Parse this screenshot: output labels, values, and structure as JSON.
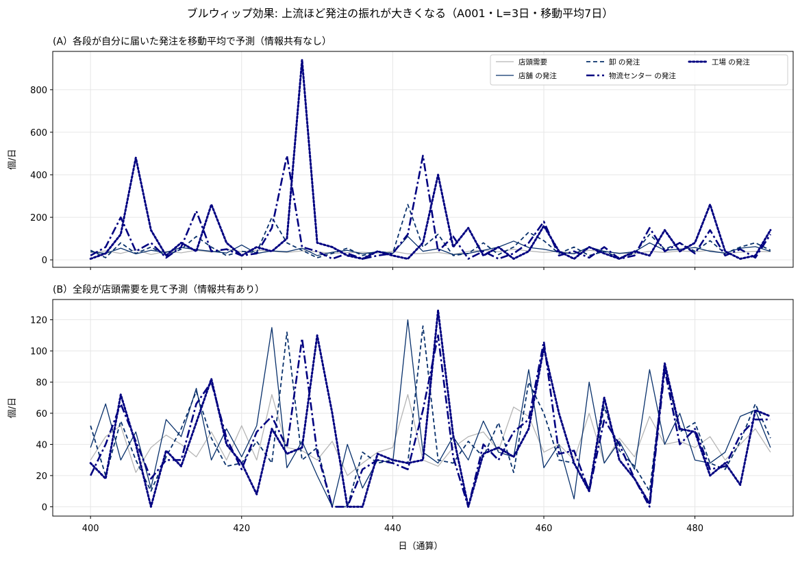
{
  "figure": {
    "suptitle": "ブルウィップ効果: 上流ほど発注の振れが大きくなる（A001・L=3日・移動平均7日）",
    "xlabel": "日（通算）"
  },
  "legend": {
    "placement": "upper-right",
    "entries": [
      {
        "label": "店頭需要",
        "color": "#b5b5b5",
        "style": "solid-thin"
      },
      {
        "label": "店舗 の発注",
        "color": "#08306b",
        "style": "solid"
      },
      {
        "label": "卸 の発注",
        "color": "#08306b",
        "style": "dashed"
      },
      {
        "label": "物流センター の発注",
        "color": "#000080",
        "style": "dashdot"
      },
      {
        "label": "工場 の発注",
        "color": "#000080",
        "style": "dotted"
      }
    ]
  },
  "chart_data": [
    {
      "type": "line",
      "title": "(A）各段が自分に届いた発注を移動平均で予測（情報共有なし）",
      "ylabel": "個/日",
      "xlim": [
        395,
        493
      ],
      "ylim": [
        -35,
        980
      ],
      "xticks": [
        400,
        420,
        440,
        460,
        480
      ],
      "yticks": [
        0,
        200,
        400,
        600,
        800
      ],
      "grid": true,
      "series": [
        {
          "name": "店頭需要",
          "x": [
            400,
            402,
            404,
            406,
            408,
            410,
            412,
            414,
            416,
            418,
            420,
            422,
            424,
            426,
            428,
            430,
            432,
            434,
            436,
            438,
            440,
            442,
            444,
            446,
            448,
            450,
            452,
            454,
            456,
            458,
            460,
            462,
            464,
            466,
            468,
            470,
            472,
            474,
            476,
            478,
            480,
            482,
            484,
            486,
            488,
            490
          ],
          "values": [
            35,
            42,
            30,
            48,
            25,
            40,
            33,
            45,
            36,
            50,
            38,
            45,
            40,
            35,
            42,
            38,
            30,
            34,
            36,
            32,
            40,
            28,
            30,
            35,
            25,
            40,
            45,
            38,
            50,
            42,
            35,
            40,
            30,
            45,
            38,
            32,
            28,
            40,
            35,
            42,
            38,
            45,
            30,
            36,
            40,
            38
          ]
        },
        {
          "name": "店舗 の発注",
          "x": [
            400,
            402,
            404,
            406,
            408,
            410,
            412,
            414,
            416,
            418,
            420,
            422,
            424,
            426,
            428,
            430,
            432,
            434,
            436,
            438,
            440,
            442,
            444,
            446,
            448,
            450,
            452,
            454,
            456,
            458,
            460,
            462,
            464,
            466,
            468,
            470,
            472,
            474,
            476,
            478,
            480,
            482,
            484,
            486,
            488,
            490
          ],
          "values": [
            38,
            30,
            55,
            28,
            45,
            35,
            58,
            48,
            40,
            32,
            70,
            30,
            42,
            38,
            55,
            20,
            36,
            45,
            28,
            38,
            30,
            110,
            40,
            52,
            25,
            30,
            45,
            60,
            88,
            58,
            50,
            36,
            28,
            60,
            40,
            30,
            38,
            80,
            45,
            50,
            58,
            40,
            32,
            55,
            62,
            40
          ]
        },
        {
          "name": "卸 の発注",
          "x": [
            400,
            402,
            404,
            406,
            408,
            410,
            412,
            414,
            416,
            418,
            420,
            422,
            424,
            426,
            428,
            430,
            432,
            434,
            436,
            438,
            440,
            442,
            444,
            446,
            448,
            450,
            452,
            454,
            456,
            458,
            460,
            462,
            464,
            466,
            468,
            470,
            472,
            474,
            476,
            478,
            480,
            482,
            484,
            486,
            488,
            490
          ],
          "values": [
            45,
            10,
            80,
            30,
            60,
            20,
            50,
            110,
            60,
            20,
            40,
            35,
            200,
            80,
            45,
            10,
            30,
            55,
            20,
            40,
            30,
            260,
            60,
            120,
            20,
            30,
            80,
            25,
            60,
            130,
            90,
            30,
            60,
            20,
            40,
            10,
            30,
            120,
            50,
            80,
            40,
            90,
            30,
            60,
            80,
            45
          ]
        },
        {
          "name": "物流センター の発注",
          "x": [
            400,
            402,
            404,
            406,
            408,
            410,
            412,
            414,
            416,
            418,
            420,
            422,
            424,
            426,
            428,
            430,
            432,
            434,
            436,
            438,
            440,
            442,
            444,
            446,
            448,
            450,
            452,
            454,
            456,
            458,
            460,
            462,
            464,
            466,
            468,
            470,
            472,
            474,
            476,
            478,
            480,
            482,
            484,
            486,
            488,
            490
          ],
          "values": [
            20,
            60,
            200,
            40,
            80,
            10,
            60,
            230,
            40,
            50,
            20,
            30,
            150,
            490,
            60,
            40,
            5,
            30,
            5,
            20,
            30,
            120,
            490,
            40,
            110,
            5,
            40,
            5,
            30,
            80,
            180,
            20,
            40,
            10,
            60,
            5,
            20,
            150,
            40,
            80,
            30,
            140,
            20,
            50,
            10,
            120
          ]
        },
        {
          "name": "工場 の発注",
          "x": [
            400,
            402,
            404,
            406,
            408,
            410,
            412,
            414,
            416,
            418,
            420,
            422,
            424,
            426,
            428,
            430,
            432,
            434,
            436,
            438,
            440,
            442,
            444,
            446,
            448,
            450,
            452,
            454,
            456,
            458,
            460,
            462,
            464,
            466,
            468,
            470,
            472,
            474,
            476,
            478,
            480,
            482,
            484,
            486,
            488,
            490
          ],
          "values": [
            5,
            30,
            120,
            480,
            140,
            20,
            80,
            40,
            260,
            80,
            20,
            60,
            40,
            100,
            940,
            80,
            60,
            20,
            5,
            40,
            20,
            5,
            80,
            400,
            60,
            150,
            20,
            60,
            5,
            40,
            160,
            40,
            5,
            60,
            30,
            5,
            40,
            20,
            140,
            40,
            80,
            260,
            40,
            5,
            20,
            140
          ]
        }
      ]
    },
    {
      "type": "line",
      "title": "(B）全段が店頭需要を見て予測（情報共有あり）",
      "ylabel": "個/日",
      "xlim": [
        395,
        493
      ],
      "ylim": [
        -6,
        133
      ],
      "xticks": [
        400,
        420,
        440,
        460,
        480
      ],
      "xticklabels": [
        "400",
        "420",
        "440",
        "460",
        "480"
      ],
      "yticks": [
        0,
        20,
        40,
        60,
        80,
        100,
        120
      ],
      "grid": true,
      "series": [
        {
          "name": "店頭需要",
          "x": [
            400,
            402,
            404,
            406,
            408,
            410,
            412,
            414,
            416,
            418,
            420,
            422,
            424,
            426,
            428,
            430,
            432,
            434,
            436,
            438,
            440,
            442,
            444,
            446,
            448,
            450,
            452,
            454,
            456,
            458,
            460,
            462,
            464,
            466,
            468,
            470,
            472,
            474,
            476,
            478,
            480,
            482,
            484,
            486,
            488,
            490
          ],
          "values": [
            30,
            45,
            52,
            22,
            38,
            46,
            40,
            32,
            48,
            30,
            52,
            30,
            72,
            38,
            36,
            30,
            42,
            20,
            28,
            35,
            38,
            72,
            30,
            26,
            38,
            45,
            48,
            36,
            64,
            58,
            35,
            40,
            30,
            60,
            28,
            44,
            32,
            58,
            40,
            42,
            38,
            45,
            30,
            40,
            50,
            35
          ]
        },
        {
          "name": "店舗 の発注",
          "x": [
            400,
            402,
            404,
            406,
            408,
            410,
            412,
            414,
            416,
            418,
            420,
            422,
            424,
            426,
            428,
            430,
            432,
            434,
            436,
            438,
            440,
            442,
            444,
            446,
            448,
            450,
            452,
            454,
            456,
            458,
            460,
            462,
            464,
            466,
            468,
            470,
            472,
            474,
            476,
            478,
            480,
            482,
            484,
            486,
            488,
            490
          ],
          "values": [
            38,
            66,
            30,
            48,
            12,
            56,
            45,
            76,
            30,
            50,
            32,
            52,
            115,
            25,
            42,
            20,
            0,
            40,
            12,
            30,
            28,
            120,
            35,
            28,
            45,
            30,
            55,
            35,
            32,
            88,
            25,
            40,
            5,
            80,
            28,
            42,
            24,
            88,
            40,
            60,
            30,
            28,
            35,
            58,
            62,
            38
          ]
        },
        {
          "name": "卸 の発注",
          "x": [
            400,
            402,
            404,
            406,
            408,
            410,
            412,
            414,
            416,
            418,
            420,
            422,
            424,
            426,
            428,
            430,
            432,
            434,
            436,
            438,
            440,
            442,
            444,
            446,
            448,
            450,
            452,
            454,
            456,
            458,
            460,
            462,
            464,
            466,
            468,
            470,
            472,
            474,
            476,
            478,
            480,
            482,
            484,
            486,
            488,
            490
          ],
          "values": [
            52,
            20,
            55,
            30,
            10,
            32,
            50,
            74,
            44,
            26,
            28,
            42,
            28,
            112,
            30,
            38,
            0,
            0,
            35,
            28,
            30,
            28,
            116,
            30,
            28,
            42,
            32,
            54,
            22,
            80,
            60,
            30,
            28,
            12,
            64,
            36,
            26,
            10,
            90,
            48,
            54,
            28,
            24,
            42,
            66,
            44
          ]
        },
        {
          "name": "物流センター の発注",
          "x": [
            400,
            402,
            404,
            406,
            408,
            410,
            412,
            414,
            416,
            418,
            420,
            422,
            424,
            426,
            428,
            430,
            432,
            434,
            436,
            438,
            440,
            442,
            444,
            446,
            448,
            450,
            452,
            454,
            456,
            458,
            460,
            462,
            464,
            466,
            468,
            470,
            472,
            474,
            476,
            478,
            480,
            482,
            484,
            486,
            488,
            490
          ],
          "values": [
            20,
            40,
            66,
            42,
            18,
            30,
            30,
            66,
            80,
            44,
            24,
            48,
            58,
            38,
            108,
            35,
            0,
            0,
            24,
            30,
            28,
            24,
            62,
            110,
            32,
            0,
            40,
            30,
            48,
            56,
            106,
            34,
            36,
            10,
            56,
            40,
            18,
            0,
            88,
            40,
            50,
            24,
            26,
            46,
            56,
            56
          ]
        },
        {
          "name": "工場 の発注",
          "x": [
            400,
            402,
            404,
            406,
            408,
            410,
            412,
            414,
            416,
            418,
            420,
            422,
            424,
            426,
            428,
            430,
            432,
            434,
            436,
            438,
            440,
            442,
            444,
            446,
            448,
            450,
            452,
            454,
            456,
            458,
            460,
            462,
            464,
            466,
            468,
            470,
            472,
            474,
            476,
            478,
            480,
            482,
            484,
            486,
            488,
            490
          ],
          "values": [
            28,
            18,
            72,
            40,
            0,
            36,
            26,
            54,
            82,
            40,
            28,
            8,
            50,
            34,
            38,
            110,
            60,
            0,
            0,
            34,
            30,
            28,
            30,
            126,
            46,
            0,
            34,
            38,
            32,
            50,
            102,
            60,
            28,
            10,
            70,
            30,
            18,
            2,
            92,
            50,
            48,
            20,
            28,
            14,
            62,
            58
          ]
        }
      ]
    }
  ]
}
